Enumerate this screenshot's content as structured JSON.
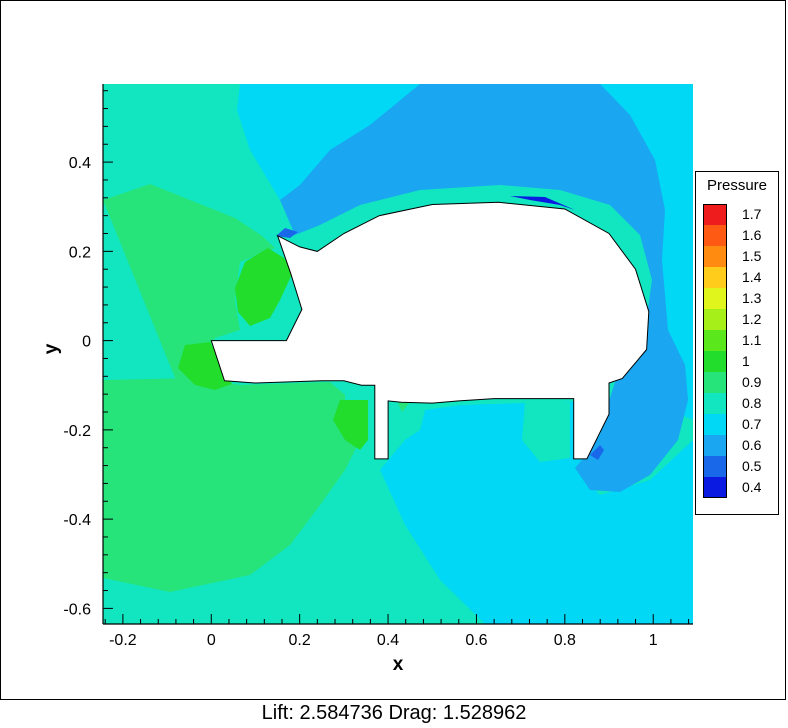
{
  "chart_data": {
    "type": "heatmap",
    "xlabel": "x",
    "ylabel": "y",
    "xlim": [
      -0.245,
      1.09
    ],
    "ylim": [
      -0.635,
      0.575
    ],
    "x_ticks": [
      -0.2,
      0,
      0.2,
      0.4,
      0.6,
      0.8,
      1
    ],
    "x_tick_labels": [
      "-0.2",
      "0",
      "0.2",
      "0.4",
      "0.6",
      "0.8",
      "1"
    ],
    "y_ticks": [
      0.4,
      0.2,
      0,
      -0.2,
      -0.4,
      -0.6
    ],
    "y_tick_labels": [
      "0.4",
      "0.2",
      "0",
      "-0.2",
      "-0.4",
      "-0.6"
    ],
    "grid": false,
    "colorbar": {
      "title": "Pressure",
      "placement": "right",
      "levels": [
        {
          "value": 1.7,
          "label": "1.7",
          "color": "#ee1c1c"
        },
        {
          "value": 1.6,
          "label": "1.6",
          "color": "#ff5a14"
        },
        {
          "value": 1.5,
          "label": "1.5",
          "color": "#ff8c10"
        },
        {
          "value": 1.4,
          "label": "1.4",
          "color": "#ffcc1c"
        },
        {
          "value": 1.3,
          "label": "1.3",
          "color": "#e0f51c"
        },
        {
          "value": 1.2,
          "label": "1.2",
          "color": "#a6ef18"
        },
        {
          "value": 1.1,
          "label": "1.1",
          "color": "#5ae81c"
        },
        {
          "value": 1.0,
          "label": "1",
          "color": "#22dd2c"
        },
        {
          "value": 0.9,
          "label": "0.9",
          "color": "#26e47a"
        },
        {
          "value": 0.8,
          "label": "0.8",
          "color": "#12e6c0"
        },
        {
          "value": 0.7,
          "label": "0.7",
          "color": "#00d8f5"
        },
        {
          "value": 0.6,
          "label": "0.6",
          "color": "#1aa6f0"
        },
        {
          "value": 0.5,
          "label": "0.5",
          "color": "#1a68ea"
        },
        {
          "value": 0.4,
          "label": "0.4",
          "color": "#0a1ae0"
        }
      ]
    },
    "body_outline": [
      [
        0.0,
        0.0
      ],
      [
        0.17,
        0.0
      ],
      [
        0.205,
        0.07
      ],
      [
        0.18,
        0.15
      ],
      [
        0.15,
        0.235
      ],
      [
        0.2,
        0.21
      ],
      [
        0.24,
        0.2
      ],
      [
        0.3,
        0.24
      ],
      [
        0.38,
        0.28
      ],
      [
        0.5,
        0.305
      ],
      [
        0.65,
        0.31
      ],
      [
        0.8,
        0.295
      ],
      [
        0.9,
        0.24
      ],
      [
        0.96,
        0.16
      ],
      [
        0.99,
        0.065
      ],
      [
        0.985,
        -0.02
      ],
      [
        0.93,
        -0.085
      ],
      [
        0.9,
        -0.095
      ],
      [
        0.9,
        -0.165
      ],
      [
        0.85,
        -0.265
      ],
      [
        0.82,
        -0.265
      ],
      [
        0.82,
        -0.13
      ],
      [
        0.72,
        -0.13
      ],
      [
        0.64,
        -0.13
      ],
      [
        0.56,
        -0.135
      ],
      [
        0.5,
        -0.14
      ],
      [
        0.43,
        -0.138
      ],
      [
        0.4,
        -0.135
      ],
      [
        0.4,
        -0.265
      ],
      [
        0.37,
        -0.265
      ],
      [
        0.37,
        -0.1
      ],
      [
        0.34,
        -0.1
      ],
      [
        0.3,
        -0.09
      ],
      [
        0.25,
        -0.09
      ],
      [
        0.1,
        -0.095
      ],
      [
        0.03,
        -0.09
      ],
      [
        0.0,
        0.0
      ]
    ],
    "pressure_regions": [
      {
        "level": 0.6,
        "polygon": [
          [
            0.35,
            0.58
          ],
          [
            0.95,
            0.58
          ],
          [
            1.0,
            0.55
          ],
          [
            1.09,
            0.1
          ],
          [
            1.09,
            -0.3
          ],
          [
            1.0,
            -0.6
          ],
          [
            0.85,
            -0.64
          ],
          [
            0.55,
            -0.64
          ],
          [
            0.4,
            -0.5
          ],
          [
            0.3,
            -0.2
          ],
          [
            0.2,
            0.1
          ],
          [
            0.2,
            0.3
          ],
          [
            0.3,
            0.45
          ]
        ]
      },
      {
        "level": 0.7,
        "polygon": [
          [
            0.6,
            0.58
          ],
          [
            0.88,
            0.58
          ],
          [
            0.94,
            0.52
          ],
          [
            0.99,
            0.4
          ],
          [
            1.03,
            0.25
          ],
          [
            1.04,
            0.1
          ],
          [
            1.0,
            0.0
          ],
          [
            0.9,
            -0.1
          ],
          [
            0.85,
            -0.2
          ],
          [
            0.82,
            -0.28
          ],
          [
            0.75,
            -0.28
          ],
          [
            0.7,
            -0.15
          ],
          [
            0.5,
            -0.15
          ],
          [
            0.4,
            -0.15
          ],
          [
            0.27,
            0.05
          ],
          [
            0.2,
            0.2
          ],
          [
            0.25,
            0.25
          ],
          [
            0.35,
            0.35
          ],
          [
            0.45,
            0.45
          ]
        ]
      },
      {
        "level": 0.5,
        "polygon": [
          [
            0.87,
            -0.07
          ],
          [
            0.92,
            -0.02
          ],
          [
            1.02,
            0.06
          ],
          [
            1.04,
            -0.05
          ],
          [
            1.02,
            -0.2
          ],
          [
            0.99,
            -0.29
          ],
          [
            0.95,
            -0.335
          ],
          [
            0.88,
            -0.355
          ],
          [
            0.83,
            -0.34
          ],
          [
            0.81,
            -0.3
          ],
          [
            0.85,
            -0.27
          ],
          [
            0.9,
            -0.16
          ]
        ]
      },
      {
        "level": 0.4,
        "polygon": [
          [
            0.51,
            0.335
          ],
          [
            0.6,
            0.335
          ],
          [
            0.7,
            0.31
          ],
          [
            0.62,
            0.3
          ],
          [
            0.52,
            0.31
          ]
        ]
      }
    ],
    "annotation": "Lift: 2.584736 Drag: 1.528962"
  }
}
